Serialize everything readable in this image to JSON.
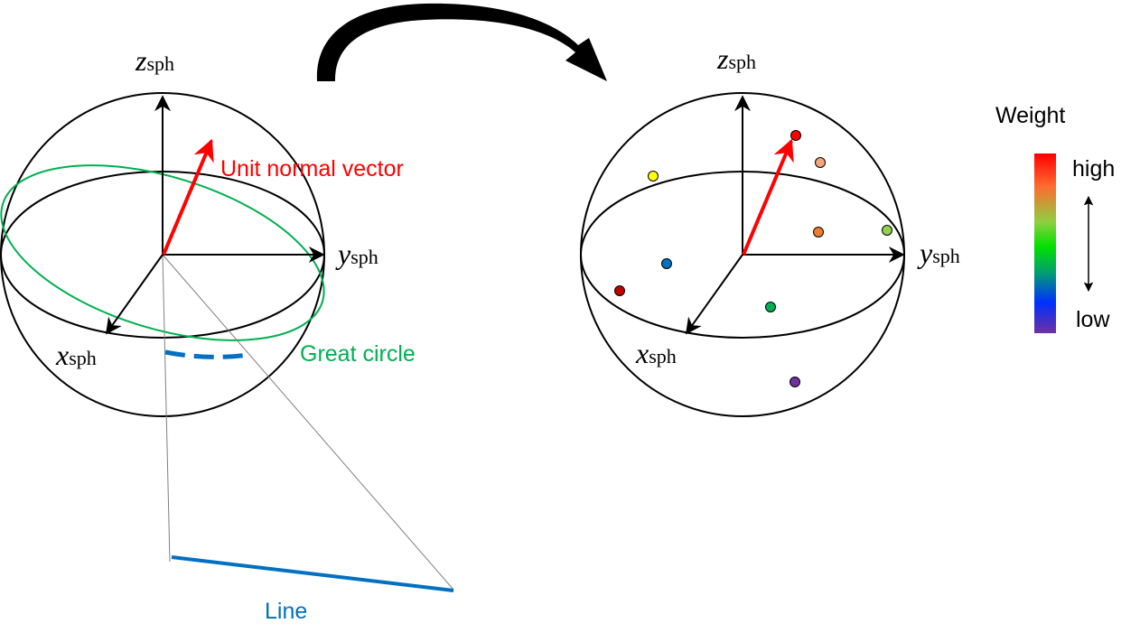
{
  "colors": {
    "outline": "#000000",
    "normal_vector": "#ff0000",
    "great_circle": "#00b050",
    "line": "#0070c0",
    "projection": "#808080"
  },
  "left_sphere": {
    "axes": {
      "z": {
        "base": "z",
        "sub": "sph"
      },
      "y": {
        "base": "y",
        "sub": "sph"
      },
      "x": {
        "base": "x",
        "sub": "sph"
      }
    },
    "labels": {
      "unit_normal": "Unit normal vector",
      "great_circle": "Great circle",
      "line": "Line"
    }
  },
  "transform_arrow": {
    "icon": "curved-arrow-icon"
  },
  "right_sphere": {
    "axes": {
      "z": {
        "base": "z",
        "sub": "sph"
      },
      "y": {
        "base": "y",
        "sub": "sph"
      },
      "x": {
        "base": "x",
        "sub": "sph"
      }
    },
    "points": [
      {
        "color": "#ff0000",
        "weight": "high"
      },
      {
        "color": "#f4a57a",
        "weight": "medium-high"
      },
      {
        "color": "#ffff00",
        "weight": "medium-high"
      },
      {
        "color": "#ed7d31",
        "weight": "medium-high"
      },
      {
        "color": "#92d050",
        "weight": "medium"
      },
      {
        "color": "#0070c0",
        "weight": "low"
      },
      {
        "color": "#c00000",
        "weight": "high"
      },
      {
        "color": "#00b050",
        "weight": "medium"
      },
      {
        "color": "#7030a0",
        "weight": "low"
      }
    ]
  },
  "legend": {
    "title": "Weight",
    "high": "high",
    "low": "low",
    "gradient": [
      "#ff0000",
      "#ff6a30",
      "#8fcf40",
      "#00e000",
      "#00a070",
      "#0030ff",
      "#7030a0"
    ]
  }
}
